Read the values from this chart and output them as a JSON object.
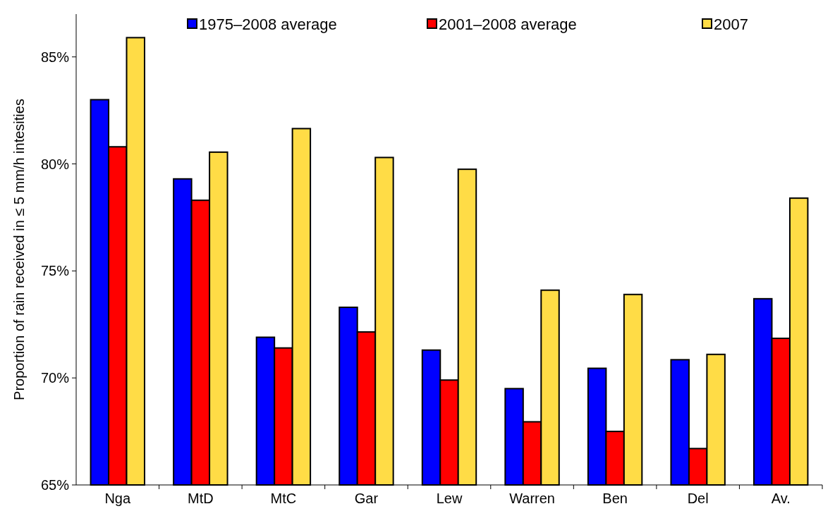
{
  "chart_data": {
    "type": "bar",
    "ylabel": "Proportion of rain received in ≤ 5 mm/h intesities",
    "categories": [
      "Nga",
      "MtD",
      "MtC",
      "Gar",
      "Lew",
      "Warren",
      "Ben",
      "Del",
      "Av."
    ],
    "series": [
      {
        "name": "1975–2008 average",
        "color": "#0000ff",
        "values": [
          83.0,
          79.3,
          71.9,
          73.3,
          71.3,
          69.5,
          70.45,
          70.85,
          73.7
        ]
      },
      {
        "name": "2001–2008 average",
        "color": "#ff0000",
        "values": [
          80.8,
          78.3,
          71.4,
          72.15,
          69.9,
          67.95,
          67.5,
          66.7,
          71.85
        ]
      },
      {
        "name": "2007",
        "color": "#ffdc46",
        "values": [
          85.9,
          80.55,
          81.65,
          80.3,
          79.75,
          74.1,
          73.9,
          71.1,
          78.4
        ]
      }
    ],
    "ylim": [
      65,
      87
    ],
    "yticks": [
      {
        "value": 65,
        "label": "65%"
      },
      {
        "value": 70,
        "label": "70%"
      },
      {
        "value": 75,
        "label": "75%"
      },
      {
        "value": 80,
        "label": "80%"
      },
      {
        "value": 85,
        "label": "85%"
      }
    ],
    "legend": "top",
    "grid": false
  }
}
